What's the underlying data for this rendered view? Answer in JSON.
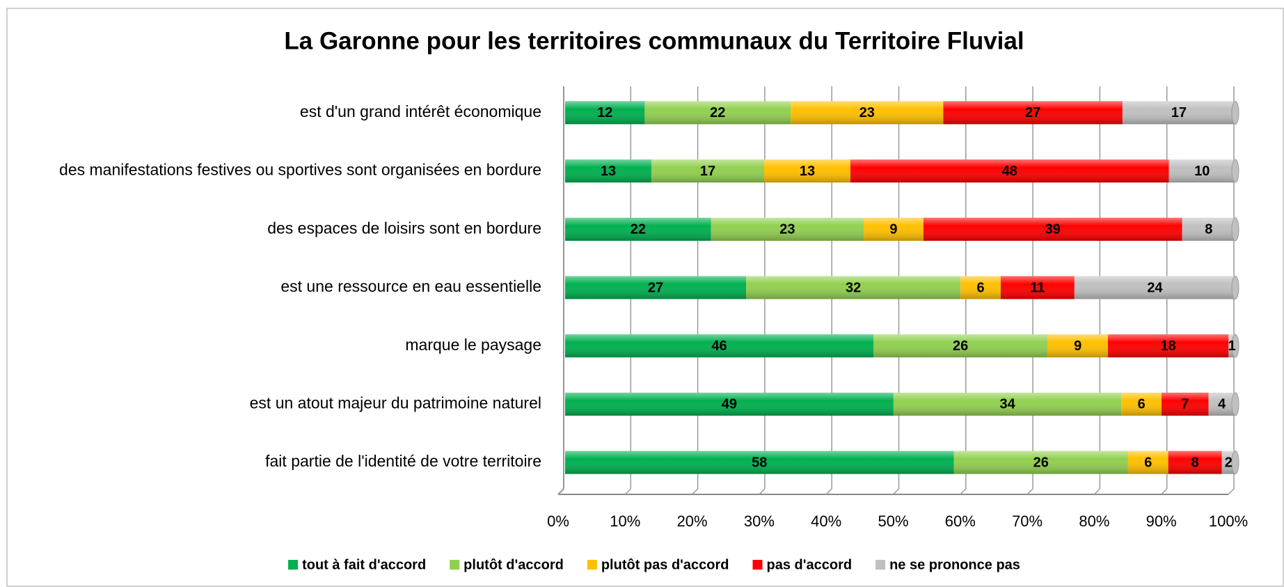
{
  "chart_data": {
    "type": "bar",
    "orientation": "horizontal",
    "stacking": "percent",
    "title": "La Garonne pour les territoires communaux du Territoire Fluvial",
    "categories": [
      "est d'un grand intérêt économique",
      "des manifestations festives ou sportives sont organisées en bordure",
      "des espaces de loisirs sont en bordure",
      "est une ressource en eau essentielle",
      "marque le paysage",
      "est un atout majeur du patrimoine naturel",
      "fait partie de l'identité de votre territoire"
    ],
    "series": [
      {
        "name": "tout à fait d'accord",
        "color": "#00b050",
        "values": [
          12,
          13,
          22,
          27,
          46,
          49,
          58
        ]
      },
      {
        "name": "plutôt d'accord",
        "color": "#92d050",
        "values": [
          22,
          17,
          23,
          32,
          26,
          34,
          26
        ]
      },
      {
        "name": "plutôt pas d'accord",
        "color": "#ffc000",
        "values": [
          23,
          13,
          9,
          6,
          9,
          6,
          6
        ]
      },
      {
        "name": "pas d'accord",
        "color": "#ff0000",
        "values": [
          27,
          48,
          39,
          11,
          18,
          7,
          8
        ]
      },
      {
        "name": "ne se prononce pas",
        "color": "#c0c0c0",
        "values": [
          17,
          10,
          8,
          24,
          1,
          4,
          2
        ]
      }
    ],
    "xlim": [
      0,
      100
    ],
    "xticks": [
      {
        "value": 0,
        "label": "0%"
      },
      {
        "value": 10,
        "label": "10%"
      },
      {
        "value": 20,
        "label": "20%"
      },
      {
        "value": 30,
        "label": "30%"
      },
      {
        "value": 40,
        "label": "40%"
      },
      {
        "value": 50,
        "label": "50%"
      },
      {
        "value": 60,
        "label": "60%"
      },
      {
        "value": 70,
        "label": "70%"
      },
      {
        "value": 80,
        "label": "80%"
      },
      {
        "value": 90,
        "label": "90%"
      },
      {
        "value": 100,
        "label": "100%"
      }
    ],
    "grid": true,
    "legend": "bottom"
  }
}
